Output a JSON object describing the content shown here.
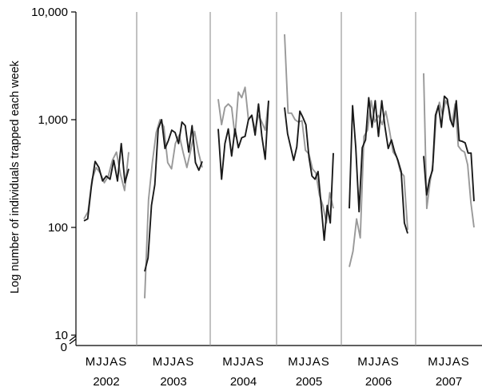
{
  "chart_data": {
    "type": "line",
    "ylabel": "Log number of individuals trapped each week",
    "xlabel": "",
    "yscale": "log",
    "ylim": [
      10,
      10000
    ],
    "yticks": [
      {
        "value": 10000,
        "label": "10,000"
      },
      {
        "value": 1000,
        "label": "1,000"
      },
      {
        "value": 100,
        "label": "100"
      },
      {
        "value": 10,
        "label": "10"
      }
    ],
    "y_zero_label": "0",
    "month_labels": "MJJASMJJASMJJASMJJASMJJASMJJAS",
    "month_initials": "MJJAS",
    "grid": false,
    "legend": "none",
    "colors": {
      "dark": "#1a1a1a",
      "light": "#999999",
      "divider": "#9a9a9a"
    },
    "panels": [
      {
        "year": "2002",
        "series": [
          {
            "color": "light",
            "values": [
              120,
              140,
              280,
              360,
              320,
              260,
              300,
              420,
              500,
              310,
              220,
              500
            ]
          },
          {
            "color": "dark",
            "values": [
              115,
              120,
              240,
              410,
              360,
              270,
              300,
              280,
              420,
              270,
              600,
              260,
              350
            ]
          }
        ]
      },
      {
        "year": "2003",
        "series": [
          {
            "color": "light",
            "values": [
              22,
              180,
              400,
              760,
              1000,
              860,
              400,
              350,
              600,
              720,
              500,
              360,
              520,
              780,
              500,
              360
            ]
          },
          {
            "color": "dark",
            "values": [
              39,
              52,
              160,
              250,
              820,
              1000,
              540,
              640,
              800,
              760,
              600,
              950,
              880,
              500,
              880,
              400,
              340,
              410
            ]
          }
        ]
      },
      {
        "year": "2004",
        "series": [
          {
            "color": "light",
            "values": [
              1550,
              900,
              1300,
              1400,
              1300,
              700,
              1800,
              1600,
              2000,
              1000,
              1100,
              800,
              1100,
              950,
              800,
              1500
            ]
          },
          {
            "color": "dark",
            "values": [
              820,
              280,
              600,
              820,
              460,
              820,
              550,
              680,
              700,
              1000,
              1100,
              720,
              1400,
              700,
              430,
              1500
            ]
          }
        ]
      },
      {
        "year": "2005",
        "series": [
          {
            "color": "light",
            "values": [
              6200,
              1150,
              1150,
              1000,
              950,
              980,
              520,
              480,
              350,
              320,
              200,
              160,
              110,
              210,
              150
            ]
          },
          {
            "color": "dark",
            "values": [
              1300,
              740,
              560,
              420,
              560,
              1200,
              1050,
              900,
              450,
              300,
              280,
              330,
              160,
              76,
              160,
              110,
              490
            ]
          }
        ]
      },
      {
        "year": "2006",
        "series": [
          {
            "color": "light",
            "values": [
              43,
              60,
              120,
              80,
              700,
              800,
              1500,
              950,
              1100,
              900,
              1200,
              800,
              500,
              450,
              330,
              300,
              95
            ]
          },
          {
            "color": "dark",
            "values": [
              150,
              1350,
              550,
              140,
              550,
              650,
              1600,
              850,
              1500,
              700,
              1500,
              860,
              540,
              650,
              500,
              420,
              330,
              110,
              88
            ]
          }
        ]
      },
      {
        "year": "2007",
        "series": [
          {
            "color": "light",
            "values": [
              2700,
              150,
              260,
              400,
              1100,
              1450,
              1100,
              1500,
              1300,
              900,
              1400,
              570,
              520,
              500,
              380,
              170,
              100
            ]
          },
          {
            "color": "dark",
            "values": [
              460,
              200,
              280,
              340,
              1100,
              1350,
              850,
              1650,
              1550,
              1000,
              860,
              1500,
              640,
              630,
              610,
              490,
              490,
              175
            ]
          }
        ]
      }
    ]
  }
}
